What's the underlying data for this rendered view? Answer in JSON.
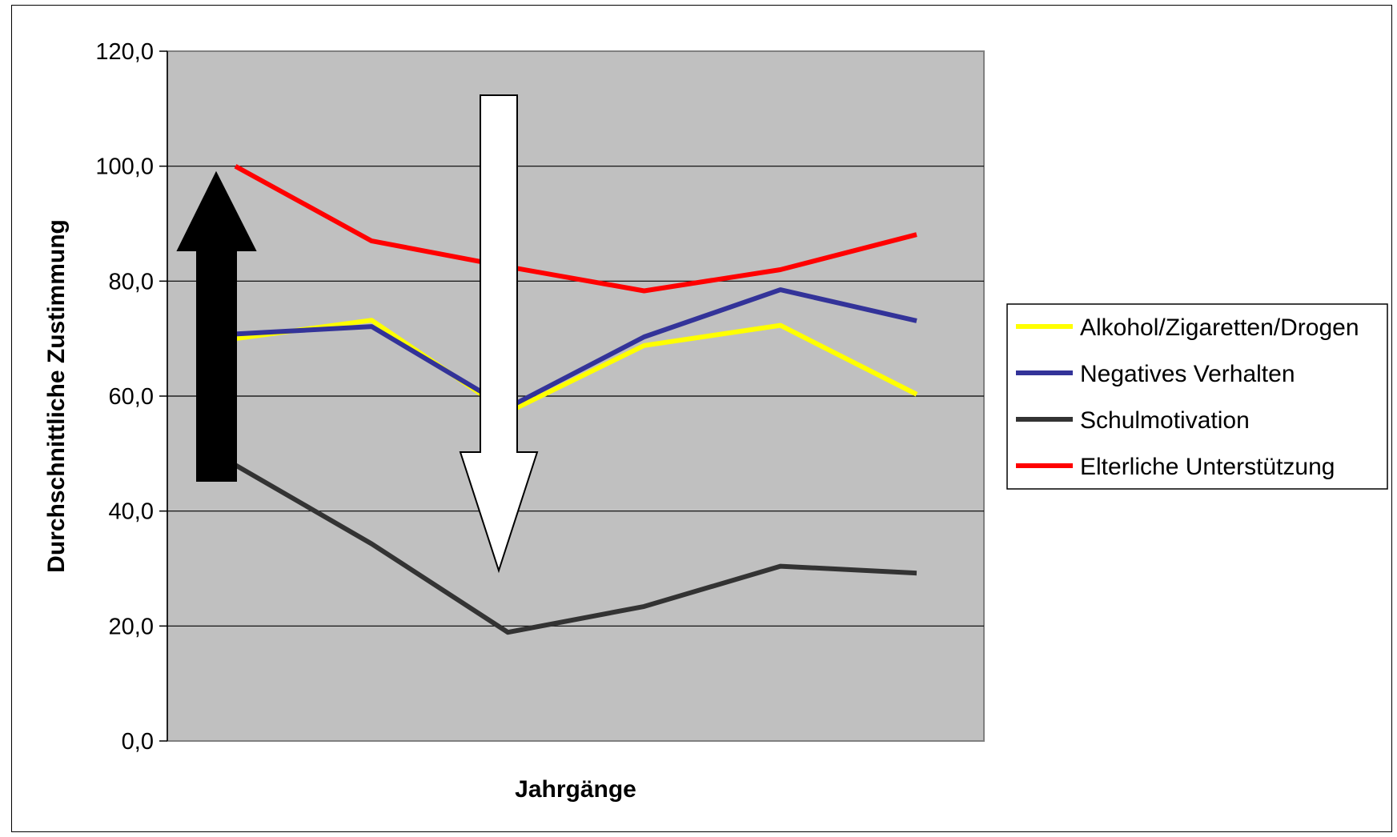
{
  "chart_data": {
    "type": "line",
    "title": "",
    "xlabel": "Jahrgänge",
    "ylabel": "Durchschnittliche Zustimmung",
    "ylim": [
      0,
      120
    ],
    "yticks": [
      "0,0",
      "20,0",
      "40,0",
      "60,0",
      "80,0",
      "100,0",
      "120,0"
    ],
    "grid": true,
    "legend": "right",
    "plot_background": "#C0C0C0",
    "x": [
      1,
      2,
      3,
      4,
      5,
      6
    ],
    "series": [
      {
        "name": "Alkohol/Zigaretten/Drogen",
        "color": "#FFFF00",
        "values": [
          70.0,
          73.2,
          57.2,
          68.8,
          72.3,
          60.3
        ]
      },
      {
        "name": "Negatives Verhalten",
        "color": "#333399",
        "values": [
          70.8,
          72.1,
          58.0,
          70.3,
          78.5,
          73.1
        ]
      },
      {
        "name": "Schulmotivation",
        "color": "#333333",
        "values": [
          48.0,
          34.3,
          18.9,
          23.4,
          30.4,
          29.2
        ]
      },
      {
        "name": "Elterliche Unterstützung",
        "color": "#FF0000",
        "values": [
          100.0,
          87.0,
          82.5,
          78.3,
          82.0,
          88.1
        ]
      }
    ],
    "annotations": [
      {
        "shape": "arrow-up",
        "fill": "#000000"
      },
      {
        "shape": "arrow-down",
        "fill": "#FFFFFF"
      }
    ]
  }
}
